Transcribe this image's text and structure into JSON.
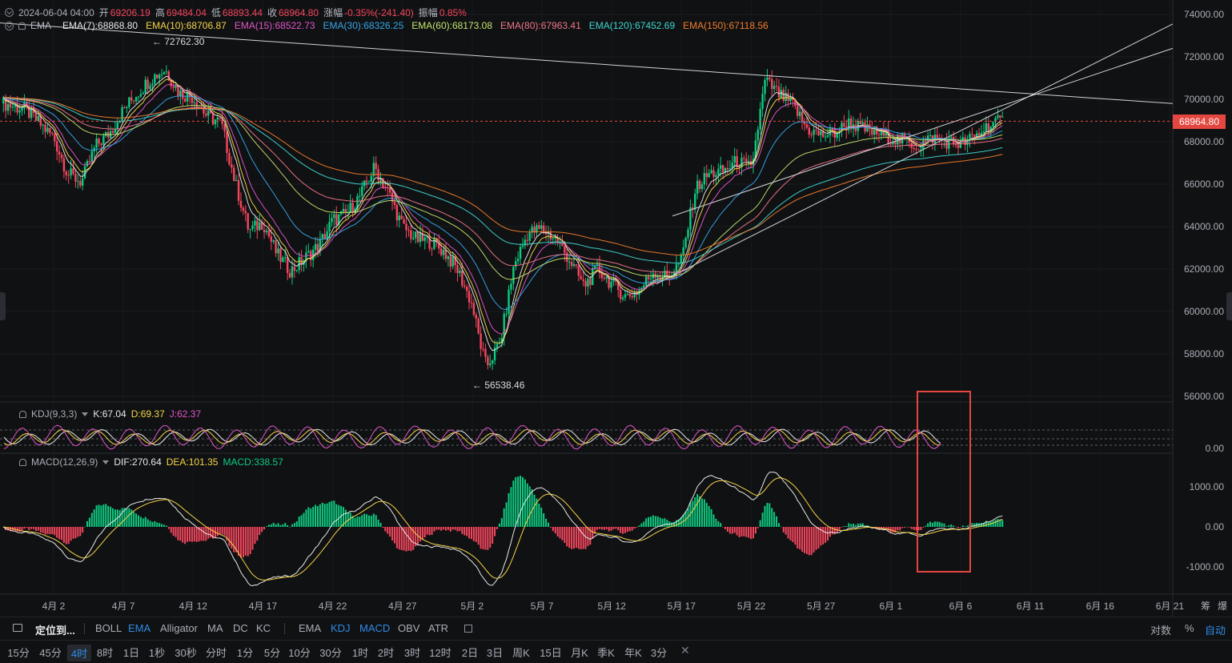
{
  "header": {
    "datetime": "2024-06-04 04:00",
    "open_label": "开",
    "open": "69206.19",
    "high_label": "高",
    "high": "69484.04",
    "low_label": "低",
    "low": "68893.44",
    "close_label": "收",
    "close": "68964.80",
    "change_label": "涨幅",
    "change": "-0.35%(-241.40)",
    "amp_label": "振幅",
    "amp": "0.85%"
  },
  "ema_legend": {
    "label": "EMA",
    "items": [
      {
        "text": "EMA(7):68868.80",
        "color": "#e8e8e8"
      },
      {
        "text": "EMA(10):68706.87",
        "color": "#f5d547"
      },
      {
        "text": "EMA(15):68522.73",
        "color": "#e056c8"
      },
      {
        "text": "EMA(30):68326.25",
        "color": "#35a7e8"
      },
      {
        "text": "EMA(60):68173.08",
        "color": "#c3e36c"
      },
      {
        "text": "EMA(80):67963.41",
        "color": "#f0768a"
      },
      {
        "text": "EMA(120):67452.69",
        "color": "#3ed6d0"
      },
      {
        "text": "EMA(150):67118.56",
        "color": "#f07d2c"
      }
    ]
  },
  "annotations": {
    "high": "72762.30",
    "low": "56538.46"
  },
  "kdj_legend": {
    "name": "KDJ(9,3,3)",
    "k": "K:67.04",
    "d": "D:69.37",
    "j": "J:62.37"
  },
  "macd_legend": {
    "name": "MACD(12,26,9)",
    "dif": "DIF:270.64",
    "dea": "DEA:101.35",
    "macd": "MACD:338.57"
  },
  "price_axis": [
    "74000.00",
    "72000.00",
    "70000.00",
    "68000.00",
    "66000.00",
    "64000.00",
    "62000.00",
    "60000.00",
    "58000.00",
    "56000.00"
  ],
  "current_price": "68964.80",
  "kdj_axis": [
    "0.00"
  ],
  "macd_axis": [
    "1000.00",
    "0.00",
    "-1000.00"
  ],
  "x_axis": [
    "4月 2",
    "4月 7",
    "4月 12",
    "4月 17",
    "4月 22",
    "4月 27",
    "5月 2",
    "5月 7",
    "5月 12",
    "5月 17",
    "5月 22",
    "5月 27",
    "6月 1",
    "6月 6",
    "6月 11",
    "6月 16",
    "6月 21"
  ],
  "x_axis_extra": [
    "筹",
    "爆"
  ],
  "toolbar": {
    "locate": "定位到...",
    "main_indicators": [
      {
        "label": "BOLL",
        "on": false
      },
      {
        "label": "EMA",
        "on": true
      },
      {
        "label": "Alligator",
        "on": false
      },
      {
        "label": "MA",
        "on": false
      },
      {
        "label": "DC",
        "on": false
      },
      {
        "label": "KC",
        "on": false
      }
    ],
    "sub_indicators": [
      {
        "label": "EMA",
        "on": false
      },
      {
        "label": "KDJ",
        "on": true
      },
      {
        "label": "MACD",
        "on": true
      },
      {
        "label": "OBV",
        "on": false
      },
      {
        "label": "ATR",
        "on": false
      }
    ],
    "right": {
      "log": "对数",
      "percent": "%",
      "auto": "自动"
    }
  },
  "timeframes": [
    {
      "label": "15分",
      "on": false
    },
    {
      "label": "45分",
      "on": false
    },
    {
      "label": "4时",
      "on": true
    },
    {
      "label": "8时",
      "on": false
    },
    {
      "label": "1日",
      "on": false
    },
    {
      "label": "1秒",
      "on": false
    },
    {
      "label": "30秒",
      "on": false
    },
    {
      "label": "分时",
      "on": false
    },
    {
      "label": "1分",
      "on": false
    },
    {
      "label": "5分",
      "on": false
    },
    {
      "label": "10分",
      "on": false
    },
    {
      "label": "30分",
      "on": false
    },
    {
      "label": "1时",
      "on": false
    },
    {
      "label": "2时",
      "on": false
    },
    {
      "label": "3时",
      "on": false
    },
    {
      "label": "12时",
      "on": false
    },
    {
      "label": "2日",
      "on": false
    },
    {
      "label": "3日",
      "on": false
    },
    {
      "label": "周K",
      "on": false
    },
    {
      "label": "15日",
      "on": false
    },
    {
      "label": "月K",
      "on": false
    },
    {
      "label": "季K",
      "on": false
    },
    {
      "label": "年K",
      "on": false
    },
    {
      "label": "3分",
      "on": false
    }
  ],
  "colors": {
    "up": "#0ecb81",
    "down": "#f6465d",
    "highlight_box": "#e4473f",
    "active": "#2f8be6"
  }
}
